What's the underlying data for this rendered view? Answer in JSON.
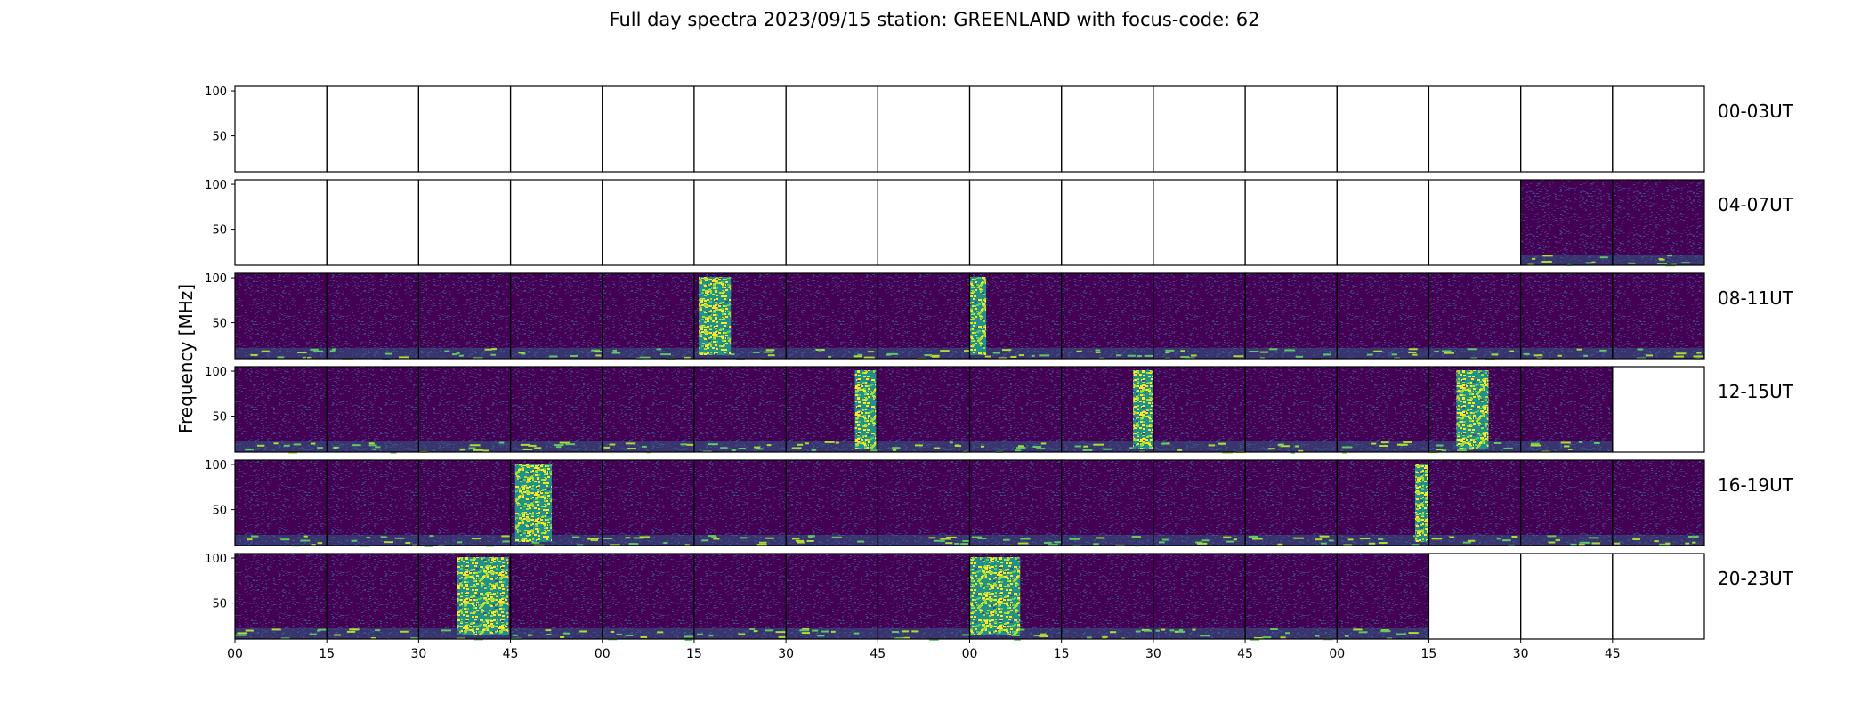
{
  "title": "Full day spectra 2023/09/15 station: GREENLAND with focus-code: 62",
  "chart_data": {
    "type": "heatmap",
    "title": "Full day spectra 2023/09/15 station: GREENLAND with focus-code: 62",
    "ylabel": "Frequency [MHz]",
    "xlabel": "",
    "ylim": [
      10,
      105
    ],
    "yticks": [
      50,
      100
    ],
    "xticks": [
      "00",
      "15",
      "30",
      "45",
      "00",
      "15",
      "30",
      "45",
      "00",
      "15",
      "30",
      "45",
      "00",
      "15",
      "30",
      "45"
    ],
    "colormap": [
      "#440154",
      "#472f7d",
      "#3b528b",
      "#2c728e",
      "#21918c",
      "#28ae80",
      "#5ec962",
      "#addc30",
      "#fde725"
    ],
    "rows": [
      {
        "label": "00-03UT",
        "panels": [
          0,
          0,
          0,
          0,
          0,
          0,
          0,
          0,
          0,
          0,
          0,
          0,
          0,
          0,
          0,
          0
        ],
        "bursts": []
      },
      {
        "label": "04-07UT",
        "panels": [
          0,
          0,
          0,
          0,
          0,
          0,
          0,
          0,
          0,
          0,
          0,
          0,
          0,
          0,
          1,
          1
        ],
        "bursts": []
      },
      {
        "label": "08-11UT",
        "panels": [
          1,
          1,
          1,
          1,
          1,
          1,
          1,
          1,
          1,
          1,
          1,
          1,
          1,
          1,
          1,
          1
        ],
        "bursts": [
          {
            "panel": 5,
            "start": 0.05,
            "end": 0.4
          },
          {
            "panel": 8,
            "start": 0.0,
            "end": 0.18
          }
        ]
      },
      {
        "label": "12-15UT",
        "panels": [
          1,
          1,
          1,
          1,
          1,
          1,
          1,
          1,
          1,
          1,
          1,
          1,
          1,
          1,
          1,
          0
        ],
        "bursts": [
          {
            "panel": 6,
            "start": 0.75,
            "end": 0.98
          },
          {
            "panel": 9,
            "start": 0.78,
            "end": 1.0
          },
          {
            "panel": 13,
            "start": 0.3,
            "end": 0.65
          }
        ]
      },
      {
        "label": "16-19UT",
        "panels": [
          1,
          1,
          1,
          1,
          1,
          1,
          1,
          1,
          1,
          1,
          1,
          1,
          1,
          1,
          1,
          1
        ],
        "bursts": [
          {
            "panel": 3,
            "start": 0.05,
            "end": 0.45
          },
          {
            "panel": 12,
            "start": 0.85,
            "end": 1.0
          }
        ]
      },
      {
        "label": "20-23UT",
        "panels": [
          1,
          1,
          1,
          1,
          1,
          1,
          1,
          1,
          1,
          1,
          1,
          1,
          1,
          0,
          0,
          0
        ],
        "bursts": [
          {
            "panel": 2,
            "start": 0.42,
            "end": 0.98
          },
          {
            "panel": 8,
            "start": 0.0,
            "end": 0.55
          }
        ]
      }
    ],
    "grid": false,
    "legend": "none"
  }
}
